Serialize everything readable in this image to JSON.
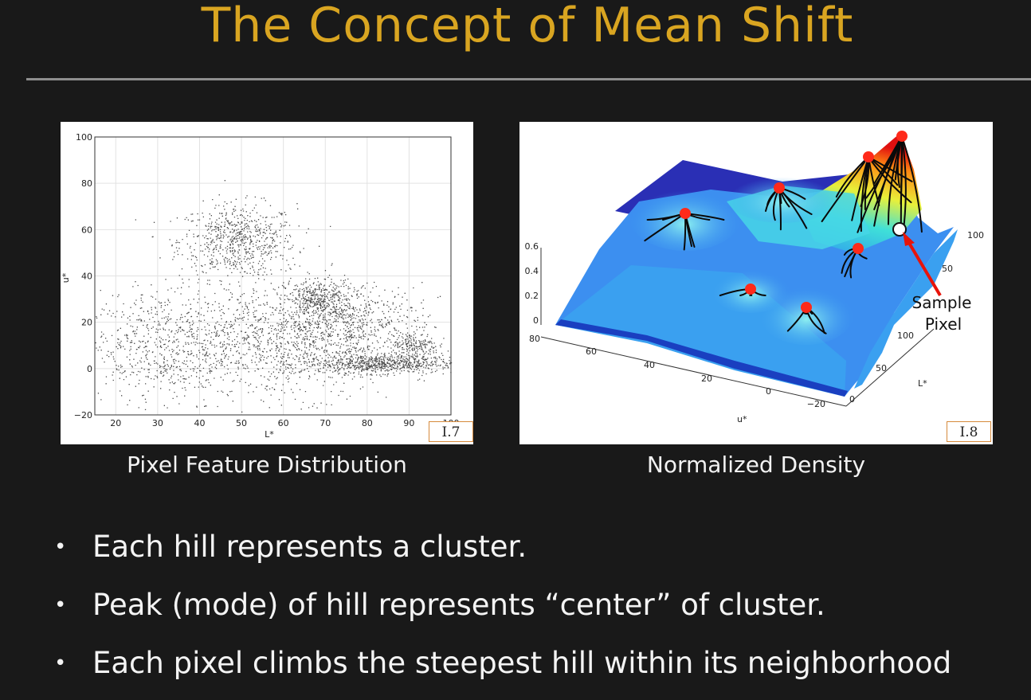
{
  "slide": {
    "title": "The Concept of Mean Shift"
  },
  "figures": {
    "left": {
      "caption": "Pixel Feature Distribution",
      "tag": "I.7",
      "chart_data": {
        "type": "scatter",
        "xlabel": "L*",
        "ylabel": "u*",
        "xlim": [
          15,
          100
        ],
        "ylim": [
          -20,
          100
        ],
        "x_ticks": [
          "20",
          "30",
          "40",
          "50",
          "60",
          "70",
          "80",
          "90",
          "100"
        ],
        "y_ticks": [
          "-20",
          "0",
          "20",
          "40",
          "60",
          "80",
          "100"
        ],
        "grid": true,
        "clusters": [
          {
            "x": 49,
            "y": 55,
            "sx": 7,
            "sy": 8,
            "n": 700
          },
          {
            "x": 68,
            "y": 30,
            "sx": 4,
            "sy": 4,
            "n": 350
          },
          {
            "x": 83,
            "y": 2,
            "sx": 9,
            "sy": 2,
            "n": 700
          },
          {
            "x": 91,
            "y": 10,
            "sx": 3,
            "sy": 3,
            "n": 200
          },
          {
            "x": 30,
            "y": 10,
            "sx": 9,
            "sy": 12,
            "n": 600
          },
          {
            "x": 60,
            "y": 12,
            "sx": 14,
            "sy": 12,
            "n": 1200
          },
          {
            "x": 75,
            "y": 20,
            "sx": 9,
            "sy": 8,
            "n": 500
          }
        ]
      }
    },
    "right": {
      "caption": "Normalized Density",
      "tag": "I.8",
      "annotation": {
        "line1": "Sample",
        "line2": "Pixel"
      },
      "axes": {
        "z_ticks": [
          "0.6",
          "0.4",
          "0.2",
          "0"
        ],
        "u_ticks": [
          "80",
          "60",
          "40",
          "20",
          "0",
          "-20"
        ],
        "l_ticks": [
          "0",
          "50",
          "100"
        ],
        "r_ticks": [
          "100",
          "50"
        ],
        "u_label": "u*",
        "l_label": "L*"
      },
      "colors": {
        "peak": "#ff2a1a",
        "sample": "#ffffff",
        "arrow": "#e8140a"
      }
    }
  },
  "bullets": [
    "Each hill represents a cluster.",
    "Peak (mode) of hill represents “center” of cluster.",
    "Each pixel climbs the steepest hill within its neighborhood"
  ]
}
